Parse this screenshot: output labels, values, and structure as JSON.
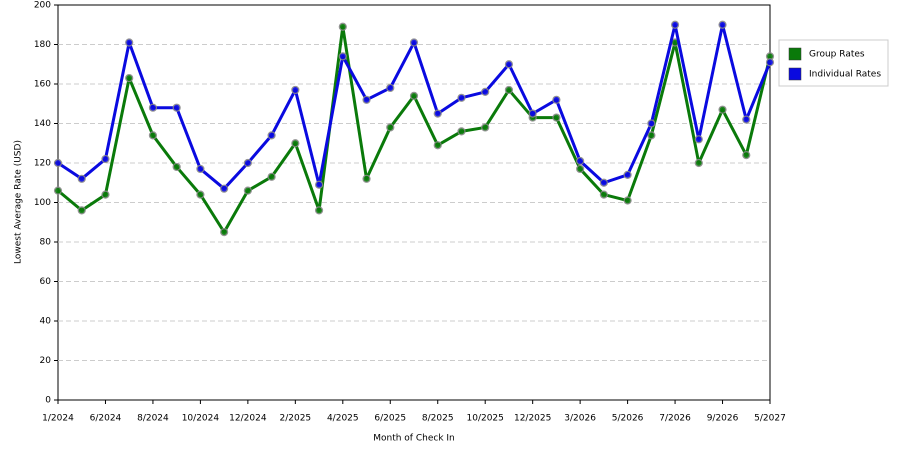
{
  "chart_data": {
    "type": "line",
    "x_label": "Month of Check In",
    "y_label": "Lowest Average Rate (USD)",
    "categories": [
      "1/2024",
      null,
      "6/2024",
      null,
      "8/2024",
      null,
      "10/2024",
      null,
      "12/2024",
      null,
      "2/2025",
      null,
      "4/2025",
      null,
      "6/2025",
      null,
      "8/2025",
      null,
      "10/2025",
      null,
      "12/2025",
      null,
      "3/2026",
      null,
      "5/2026",
      null,
      "7/2026",
      null,
      "9/2026",
      null,
      "5/2027"
    ],
    "series": [
      {
        "name": "Group Rates",
        "color": "#0a7a0a",
        "values": [
          106,
          96,
          104,
          163,
          134,
          118,
          104,
          85,
          106,
          113,
          130,
          96,
          189,
          112,
          138,
          154,
          129,
          136,
          138,
          157,
          143,
          143,
          117,
          104,
          101,
          134,
          181,
          120,
          147,
          124,
          174
        ]
      },
      {
        "name": "Individual Rates",
        "color": "#0a0ae0",
        "values": [
          120,
          112,
          122,
          181,
          148,
          148,
          117,
          107,
          120,
          134,
          157,
          109,
          174,
          152,
          158,
          181,
          145,
          153,
          156,
          170,
          145,
          152,
          121,
          110,
          114,
          140,
          190,
          132,
          190,
          142,
          171
        ]
      }
    ],
    "ylim": [
      0,
      200
    ],
    "yticks": [
      0,
      20,
      40,
      60,
      80,
      100,
      120,
      140,
      160,
      180,
      200
    ],
    "grid": true
  }
}
